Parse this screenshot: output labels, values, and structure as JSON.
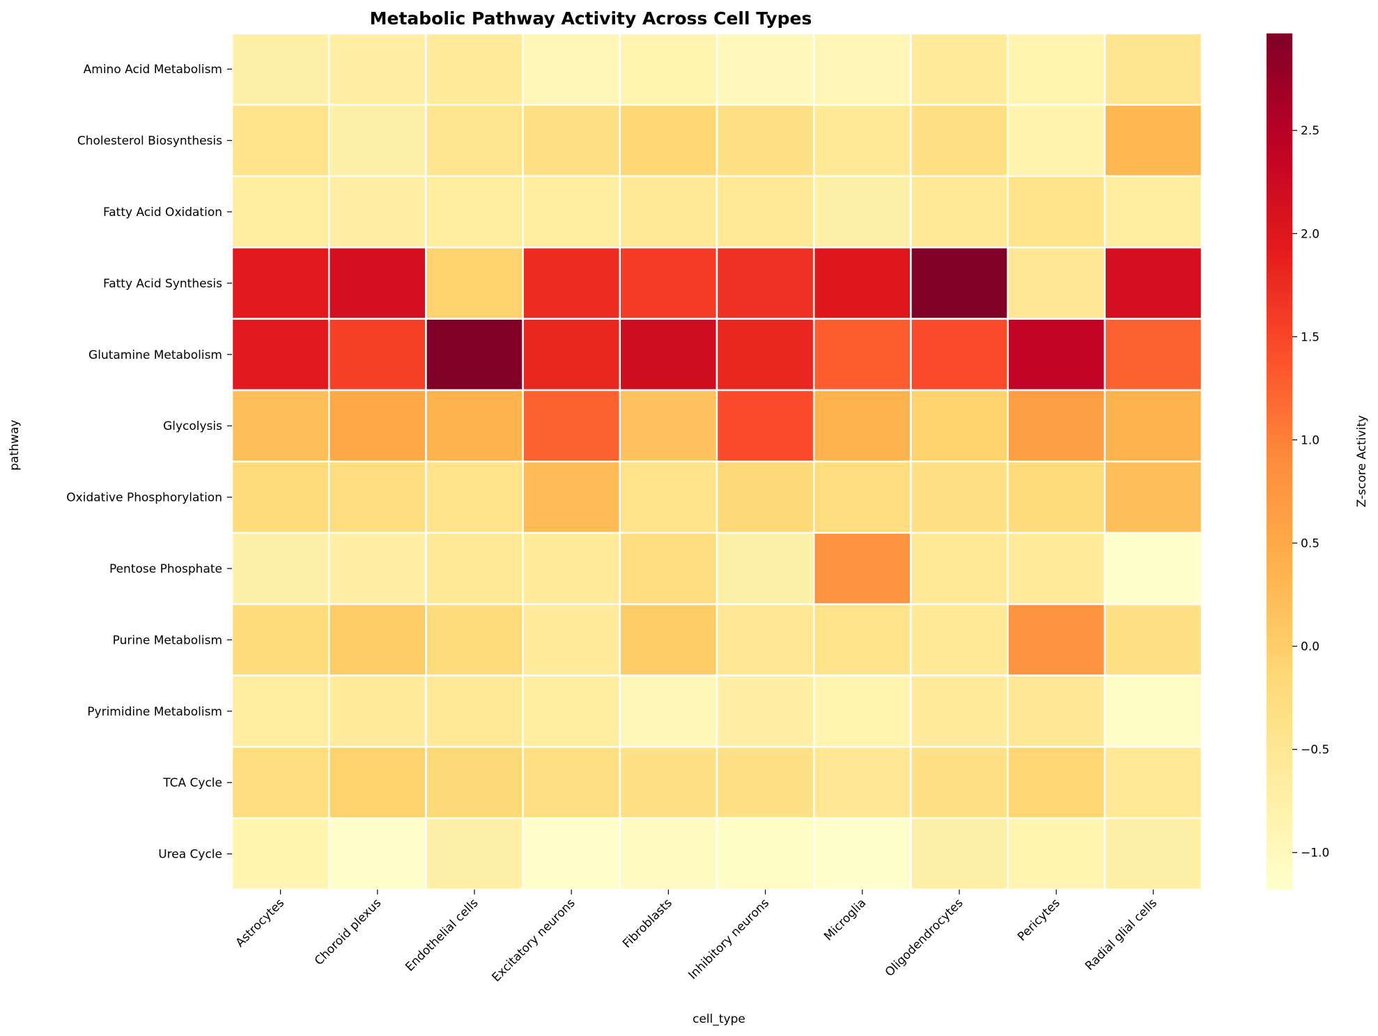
{
  "chart_data": {
    "type": "heatmap",
    "title": "Metabolic Pathway Activity Across Cell Types",
    "xlabel": "cell_type",
    "ylabel": "pathway",
    "colorbar_label": "Z-score Activity",
    "colormap": "YlOrRd",
    "color_range": [
      -1.18,
      2.97
    ],
    "colorbar_ticks": [
      "−1.0",
      "−0.5",
      "0.0",
      "0.5",
      "1.0",
      "1.5",
      "2.0",
      "2.5"
    ],
    "colorbar_tick_values": [
      -1.0,
      -0.5,
      0.0,
      0.5,
      1.0,
      1.5,
      2.0,
      2.5
    ],
    "x_categories": [
      "Astrocytes",
      "Choroid plexus",
      "Endothelial cells",
      "Excitatory neurons",
      "Fibroblasts",
      "Inhibitory neurons",
      "Microglia",
      "Oligodendrocytes",
      "Pericytes",
      "Radial glial cells"
    ],
    "y_categories": [
      "Amino Acid Metabolism",
      "Cholesterol Biosynthesis",
      "Fatty Acid Oxidation",
      "Fatty Acid Synthesis",
      "Glutamine Metabolism",
      "Glycolysis",
      "Oxidative Phosphorylation",
      "Pentose Phosphate",
      "Purine Metabolism",
      "Pyrimidine Metabolism",
      "TCA Cycle",
      "Urea Cycle"
    ],
    "values": [
      [
        -0.75,
        -0.7,
        -0.6,
        -0.95,
        -0.85,
        -1.0,
        -0.9,
        -0.6,
        -0.85,
        -0.45
      ],
      [
        -0.4,
        -0.75,
        -0.45,
        -0.35,
        -0.1,
        -0.35,
        -0.55,
        -0.3,
        -0.8,
        0.3
      ],
      [
        -0.65,
        -0.7,
        -0.65,
        -0.65,
        -0.55,
        -0.55,
        -0.75,
        -0.55,
        -0.4,
        -0.65
      ],
      [
        1.95,
        2.15,
        -0.05,
        1.75,
        1.6,
        1.7,
        2.0,
        2.97,
        -0.5,
        2.15
      ],
      [
        1.95,
        1.55,
        2.97,
        1.8,
        2.2,
        1.8,
        1.3,
        1.45,
        2.4,
        1.25
      ],
      [
        0.2,
        0.5,
        0.35,
        1.25,
        0.15,
        1.45,
        0.35,
        -0.05,
        0.65,
        0.35
      ],
      [
        -0.2,
        -0.25,
        -0.4,
        0.25,
        -0.4,
        -0.15,
        -0.25,
        -0.35,
        -0.2,
        0.2
      ],
      [
        -0.75,
        -0.7,
        -0.55,
        -0.6,
        -0.25,
        -0.75,
        0.8,
        -0.55,
        -0.6,
        -1.18
      ],
      [
        -0.2,
        0.05,
        -0.2,
        -0.6,
        0.05,
        -0.5,
        -0.4,
        -0.55,
        0.8,
        -0.35
      ],
      [
        -0.65,
        -0.6,
        -0.55,
        -0.65,
        -0.95,
        -0.7,
        -0.85,
        -0.6,
        -0.5,
        -1.1
      ],
      [
        -0.25,
        -0.05,
        -0.15,
        -0.3,
        -0.35,
        -0.35,
        -0.5,
        -0.35,
        -0.1,
        -0.55
      ],
      [
        -0.85,
        -1.15,
        -0.75,
        -1.15,
        -1.05,
        -1.1,
        -1.18,
        -0.75,
        -0.85,
        -0.75
      ]
    ]
  }
}
